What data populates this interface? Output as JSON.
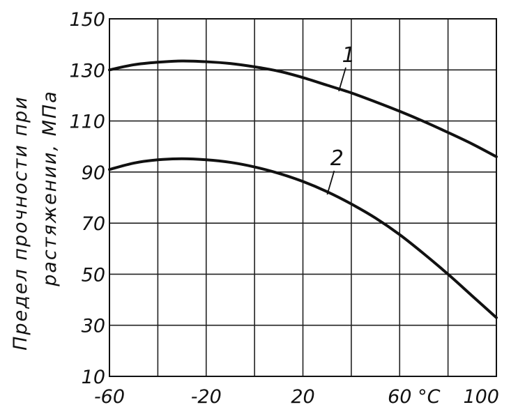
{
  "chart_data": {
    "type": "line",
    "xlabel": "°C",
    "ylabel_line1": "Предел прочности при",
    "ylabel_line2": "растяжении, МПа",
    "xlim": [
      -60,
      100
    ],
    "ylim": [
      10,
      150
    ],
    "x_ticks": [
      {
        "value": -60,
        "label": "-60"
      },
      {
        "value": -20,
        "label": "-20"
      },
      {
        "value": 20,
        "label": "20"
      },
      {
        "value": 60,
        "label": "60"
      },
      {
        "value": 100,
        "label": "100"
      }
    ],
    "x_grid": [
      -60,
      -40,
      -20,
      0,
      20,
      40,
      60,
      80,
      100
    ],
    "y_ticks": [
      10,
      30,
      50,
      70,
      90,
      110,
      130,
      150
    ],
    "grid": true,
    "series": [
      {
        "name": "1",
        "x": [
          -60,
          -50,
          -40,
          -30,
          -20,
          -10,
          0,
          10,
          20,
          30,
          40,
          50,
          60,
          70,
          80,
          90,
          100
        ],
        "y": [
          130,
          132,
          133,
          133.5,
          133.2,
          132.5,
          131.2,
          129.5,
          127,
          124,
          121,
          117.5,
          113.8,
          109.8,
          105.5,
          101,
          96
        ]
      },
      {
        "name": "2",
        "x": [
          -60,
          -50,
          -40,
          -30,
          -20,
          -10,
          0,
          10,
          20,
          30,
          40,
          50,
          60,
          70,
          80,
          90,
          100
        ],
        "y": [
          91,
          93.5,
          94.8,
          95.2,
          94.8,
          93.8,
          92,
          89.5,
          86.3,
          82.3,
          77.5,
          72,
          65.5,
          58,
          50,
          41.5,
          33
        ]
      }
    ],
    "curve_labels": [
      {
        "series": "1",
        "text": "1"
      },
      {
        "series": "2",
        "text": "2"
      }
    ]
  }
}
